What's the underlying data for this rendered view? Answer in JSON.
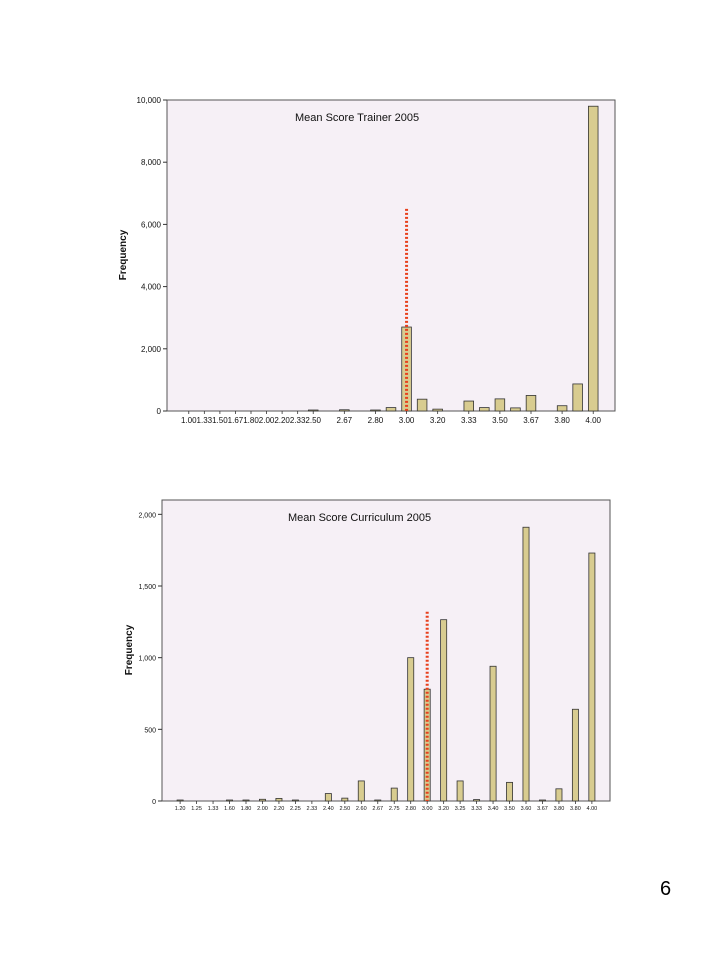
{
  "page_number": "6",
  "colors": {
    "plot_background": "#f6f0f6",
    "bar_fill": "#d8cc90",
    "bar_stroke": "#333333",
    "reference_line": "#e8401c"
  },
  "chart_data": [
    {
      "type": "bar",
      "title": "Mean Score Trainer 2005",
      "xlabel": "",
      "ylabel": "Frequency",
      "ylim": [
        0,
        10000
      ],
      "yticks": [
        0,
        2000,
        4000,
        6000,
        8000,
        10000
      ],
      "ytick_labels": [
        "0",
        "2,000",
        "4,000",
        "6,000",
        "8,000",
        "10,000"
      ],
      "categories": [
        "1.00",
        "1.33",
        "1.50",
        "1.67",
        "1.80",
        "2.00",
        "2.20",
        "2.33",
        "2.50",
        "2.67",
        "2.80",
        "3.00",
        "3.20",
        "3.33",
        "3.50",
        "3.67",
        "3.80",
        "4.00"
      ],
      "bars": [
        {
          "category": "1.00",
          "value": 0
        },
        {
          "category": "1.33",
          "value": 0
        },
        {
          "category": "1.50",
          "value": 0
        },
        {
          "category": "1.67",
          "value": 0
        },
        {
          "category": "1.80",
          "value": 0
        },
        {
          "category": "2.00",
          "value": 0
        },
        {
          "category": "2.20",
          "value": 0
        },
        {
          "category": "2.33",
          "value": 0
        },
        {
          "category": "2.50",
          "value": 10
        },
        {
          "category": "",
          "value": 0
        },
        {
          "category": "2.67",
          "value": 40
        },
        {
          "category": "",
          "value": 0
        },
        {
          "category": "2.80",
          "value": 20
        },
        {
          "category": "",
          "value": 110
        },
        {
          "category": "3.00",
          "value": 2700
        },
        {
          "category": "",
          "value": 380
        },
        {
          "category": "3.20",
          "value": 60
        },
        {
          "category": "",
          "value": 0
        },
        {
          "category": "3.33",
          "value": 320
        },
        {
          "category": "",
          "value": 110
        },
        {
          "category": "3.50",
          "value": 390
        },
        {
          "category": "",
          "value": 100
        },
        {
          "category": "3.67",
          "value": 500
        },
        {
          "category": "",
          "value": 0
        },
        {
          "category": "3.80",
          "value": 170
        },
        {
          "category": "",
          "value": 870
        },
        {
          "category": "4.00",
          "value": 9800
        }
      ],
      "reference_line": {
        "bar_index": 14,
        "top_value": 6500
      },
      "grid": false
    },
    {
      "type": "bar",
      "title": "Mean Score Curriculum 2005",
      "xlabel": "",
      "ylabel": "Frequency",
      "ylim": [
        0,
        2100
      ],
      "yticks": [
        0,
        500,
        1000,
        1500,
        2000
      ],
      "ytick_labels": [
        "0",
        "500",
        "1,000",
        "1,500",
        "2,000"
      ],
      "categories": [
        "1.20",
        "1.25",
        "1.33",
        "1.60",
        "1.80",
        "2.00",
        "2.20",
        "2.25",
        "2.33",
        "2.40",
        "2.50",
        "2.60",
        "2.67",
        "2.75",
        "2.80",
        "3.00",
        "3.20",
        "3.25",
        "3.33",
        "3.40",
        "3.50",
        "3.60",
        "3.67",
        "3.80",
        "4.00"
      ],
      "bars": [
        {
          "category": "1.20",
          "value": 2
        },
        {
          "category": "",
          "value": 0
        },
        {
          "category": "1.25",
          "value": 0
        },
        {
          "category": "",
          "value": 0
        },
        {
          "category": "1.33",
          "value": 0
        },
        {
          "category": "",
          "value": 0
        },
        {
          "category": "1.60",
          "value": 2
        },
        {
          "category": "",
          "value": 0
        },
        {
          "category": "1.80",
          "value": 2
        },
        {
          "category": "",
          "value": 0
        },
        {
          "category": "2.00",
          "value": 12
        },
        {
          "category": "",
          "value": 0
        },
        {
          "category": "2.20",
          "value": 18
        },
        {
          "category": "",
          "value": 0
        },
        {
          "category": "2.25",
          "value": 3
        },
        {
          "category": "",
          "value": 0
        },
        {
          "category": "2.33",
          "value": 0
        },
        {
          "category": "",
          "value": 0
        },
        {
          "category": "2.40",
          "value": 52
        },
        {
          "category": "",
          "value": 0
        },
        {
          "category": "2.50",
          "value": 20
        },
        {
          "category": "",
          "value": 0
        },
        {
          "category": "2.60",
          "value": 140
        },
        {
          "category": "",
          "value": 0
        },
        {
          "category": "2.67",
          "value": 5
        },
        {
          "category": "",
          "value": 0
        },
        {
          "category": "2.75",
          "value": 90
        },
        {
          "category": "",
          "value": 0
        },
        {
          "category": "2.80",
          "value": 1000
        },
        {
          "category": "",
          "value": 0
        },
        {
          "category": "3.00",
          "value": 780
        },
        {
          "category": "",
          "value": 0
        },
        {
          "category": "3.20",
          "value": 1265
        },
        {
          "category": "",
          "value": 0
        },
        {
          "category": "3.25",
          "value": 140
        },
        {
          "category": "",
          "value": 0
        },
        {
          "category": "3.33",
          "value": 10
        },
        {
          "category": "",
          "value": 0
        },
        {
          "category": "3.40",
          "value": 940
        },
        {
          "category": "",
          "value": 0
        },
        {
          "category": "3.50",
          "value": 130
        },
        {
          "category": "",
          "value": 0
        },
        {
          "category": "3.60",
          "value": 1910
        },
        {
          "category": "",
          "value": 0
        },
        {
          "category": "3.67",
          "value": 3
        },
        {
          "category": "",
          "value": 0
        },
        {
          "category": "3.80",
          "value": 85
        },
        {
          "category": "",
          "value": 0
        },
        {
          "category": "3.80",
          "value": 640
        },
        {
          "category": "",
          "value": 0
        },
        {
          "category": "4.00",
          "value": 1730
        }
      ],
      "reference_line": {
        "bar_index": 30,
        "top_value": 1320
      },
      "grid": false
    }
  ]
}
